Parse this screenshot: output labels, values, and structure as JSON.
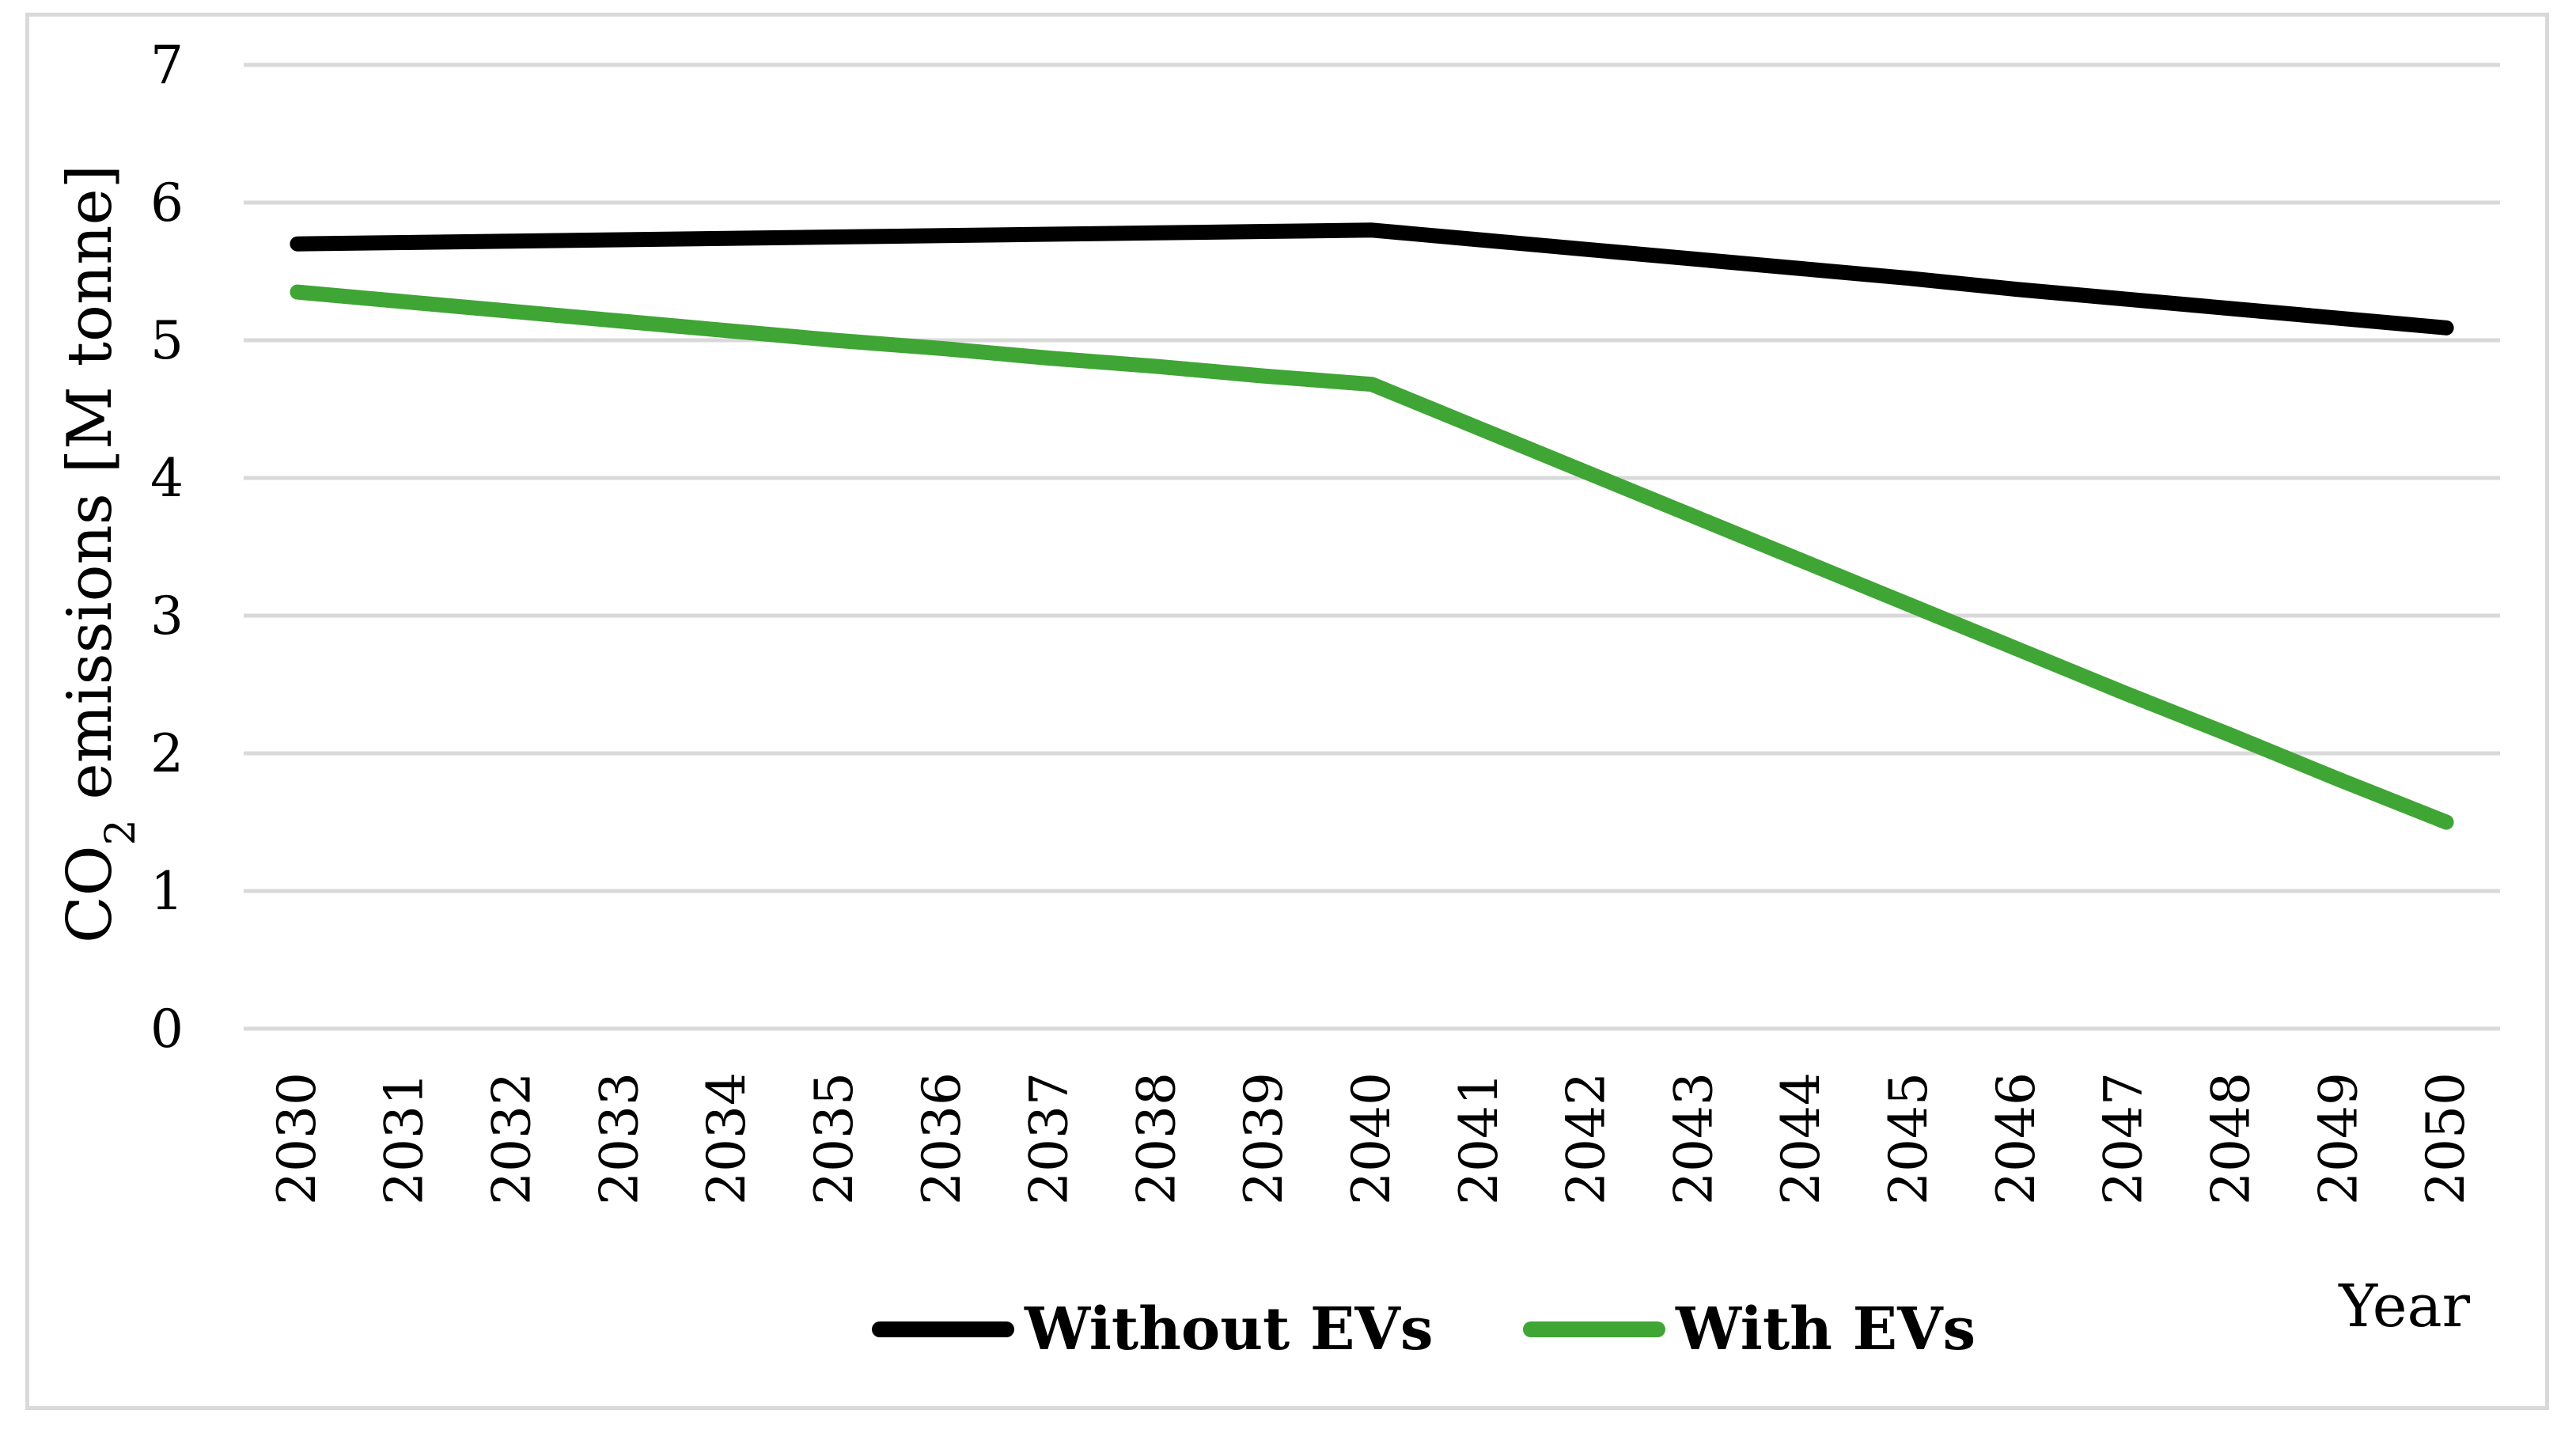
{
  "chart_data": {
    "type": "line",
    "categories": [
      "2030",
      "2031",
      "2032",
      "2033",
      "2034",
      "2035",
      "2036",
      "2037",
      "2038",
      "2039",
      "2040",
      "2041",
      "2042",
      "2043",
      "2044",
      "2045",
      "2046",
      "2047",
      "2048",
      "2049",
      "2050"
    ],
    "series": [
      {
        "name": "Without EVs",
        "color": "#000000",
        "values": [
          5.7,
          5.71,
          5.72,
          5.73,
          5.74,
          5.75,
          5.76,
          5.77,
          5.78,
          5.79,
          5.8,
          5.73,
          5.66,
          5.59,
          5.52,
          5.45,
          5.37,
          5.3,
          5.23,
          5.16,
          5.09
        ]
      },
      {
        "name": "With EVs",
        "color": "#3fa535",
        "values": [
          5.35,
          5.28,
          5.21,
          5.14,
          5.07,
          5.0,
          4.94,
          4.87,
          4.81,
          4.74,
          4.68,
          4.36,
          4.04,
          3.72,
          3.4,
          3.08,
          2.76,
          2.44,
          2.13,
          1.81,
          1.5
        ]
      }
    ],
    "ylabel_main": "CO",
    "ylabel_sub": "2",
    "ylabel_rest": " emissions [M tonne]",
    "xlabel": "Year",
    "ylim": [
      0,
      7
    ],
    "yticks": [
      "0",
      "1",
      "2",
      "3",
      "4",
      "5",
      "6",
      "7"
    ],
    "grid": true,
    "legend_position": "bottom"
  }
}
